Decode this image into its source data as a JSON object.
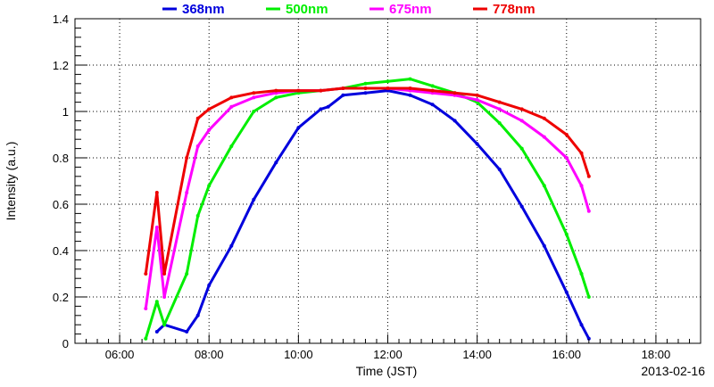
{
  "chart_data": {
    "type": "scatter",
    "xlabel": "Time (JST)",
    "ylabel": "Intensity (a.u.)",
    "date_label": "2013-02-16",
    "xlim": [
      "05:00",
      "19:00"
    ],
    "ylim": [
      0,
      1.4
    ],
    "x_ticks": [
      "06:00",
      "08:00",
      "10:00",
      "12:00",
      "14:00",
      "16:00",
      "18:00"
    ],
    "y_ticks": [
      "0",
      "0.2",
      "0.4",
      "0.6",
      "0.8",
      "1",
      "1.2",
      "1.4"
    ],
    "grid": true,
    "legend_position": "top",
    "series": [
      {
        "name": "368nm",
        "color": "#0000dd",
        "points": [
          [
            "06:50",
            0.05
          ],
          [
            "07:00",
            0.08
          ],
          [
            "07:30",
            0.05
          ],
          [
            "07:45",
            0.12
          ],
          [
            "08:00",
            0.25
          ],
          [
            "08:30",
            0.42
          ],
          [
            "09:00",
            0.62
          ],
          [
            "09:30",
            0.78
          ],
          [
            "10:00",
            0.93
          ],
          [
            "10:30",
            1.01
          ],
          [
            "10:40",
            1.02
          ],
          [
            "11:00",
            1.07
          ],
          [
            "11:30",
            1.08
          ],
          [
            "12:00",
            1.09
          ],
          [
            "12:30",
            1.07
          ],
          [
            "13:00",
            1.03
          ],
          [
            "13:30",
            0.96
          ],
          [
            "14:00",
            0.86
          ],
          [
            "14:30",
            0.75
          ],
          [
            "15:00",
            0.59
          ],
          [
            "15:30",
            0.42
          ],
          [
            "16:00",
            0.22
          ],
          [
            "16:20",
            0.08
          ],
          [
            "16:30",
            0.02
          ]
        ]
      },
      {
        "name": "500nm",
        "color": "#00ee00",
        "points": [
          [
            "06:35",
            0.02
          ],
          [
            "06:50",
            0.18
          ],
          [
            "07:00",
            0.08
          ],
          [
            "07:30",
            0.3
          ],
          [
            "07:45",
            0.55
          ],
          [
            "08:00",
            0.68
          ],
          [
            "08:30",
            0.85
          ],
          [
            "09:00",
            1.0
          ],
          [
            "09:30",
            1.06
          ],
          [
            "10:00",
            1.08
          ],
          [
            "10:30",
            1.09
          ],
          [
            "11:00",
            1.1
          ],
          [
            "11:30",
            1.12
          ],
          [
            "12:00",
            1.13
          ],
          [
            "12:30",
            1.14
          ],
          [
            "13:00",
            1.11
          ],
          [
            "13:30",
            1.08
          ],
          [
            "14:00",
            1.04
          ],
          [
            "14:30",
            0.95
          ],
          [
            "15:00",
            0.84
          ],
          [
            "15:30",
            0.68
          ],
          [
            "16:00",
            0.47
          ],
          [
            "16:20",
            0.3
          ],
          [
            "16:30",
            0.2
          ]
        ]
      },
      {
        "name": "675nm",
        "color": "#ff00ff",
        "points": [
          [
            "06:35",
            0.15
          ],
          [
            "06:50",
            0.5
          ],
          [
            "07:00",
            0.2
          ],
          [
            "07:30",
            0.65
          ],
          [
            "07:45",
            0.85
          ],
          [
            "08:00",
            0.92
          ],
          [
            "08:30",
            1.02
          ],
          [
            "09:00",
            1.06
          ],
          [
            "09:30",
            1.08
          ],
          [
            "10:00",
            1.09
          ],
          [
            "10:30",
            1.09
          ],
          [
            "11:00",
            1.1
          ],
          [
            "11:30",
            1.1
          ],
          [
            "12:00",
            1.1
          ],
          [
            "12:30",
            1.09
          ],
          [
            "13:00",
            1.08
          ],
          [
            "13:30",
            1.07
          ],
          [
            "14:00",
            1.05
          ],
          [
            "14:30",
            1.01
          ],
          [
            "15:00",
            0.96
          ],
          [
            "15:30",
            0.89
          ],
          [
            "16:00",
            0.8
          ],
          [
            "16:20",
            0.68
          ],
          [
            "16:30",
            0.57
          ]
        ]
      },
      {
        "name": "778nm",
        "color": "#ee0000",
        "points": [
          [
            "06:35",
            0.3
          ],
          [
            "06:50",
            0.65
          ],
          [
            "07:00",
            0.3
          ],
          [
            "07:30",
            0.8
          ],
          [
            "07:45",
            0.97
          ],
          [
            "08:00",
            1.01
          ],
          [
            "08:30",
            1.06
          ],
          [
            "09:00",
            1.08
          ],
          [
            "09:30",
            1.09
          ],
          [
            "10:00",
            1.09
          ],
          [
            "10:30",
            1.09
          ],
          [
            "11:00",
            1.1
          ],
          [
            "11:30",
            1.1
          ],
          [
            "12:00",
            1.1
          ],
          [
            "12:30",
            1.1
          ],
          [
            "13:00",
            1.09
          ],
          [
            "13:30",
            1.08
          ],
          [
            "14:00",
            1.07
          ],
          [
            "14:30",
            1.04
          ],
          [
            "15:00",
            1.01
          ],
          [
            "15:30",
            0.97
          ],
          [
            "16:00",
            0.9
          ],
          [
            "16:20",
            0.82
          ],
          [
            "16:30",
            0.72
          ]
        ]
      }
    ]
  }
}
